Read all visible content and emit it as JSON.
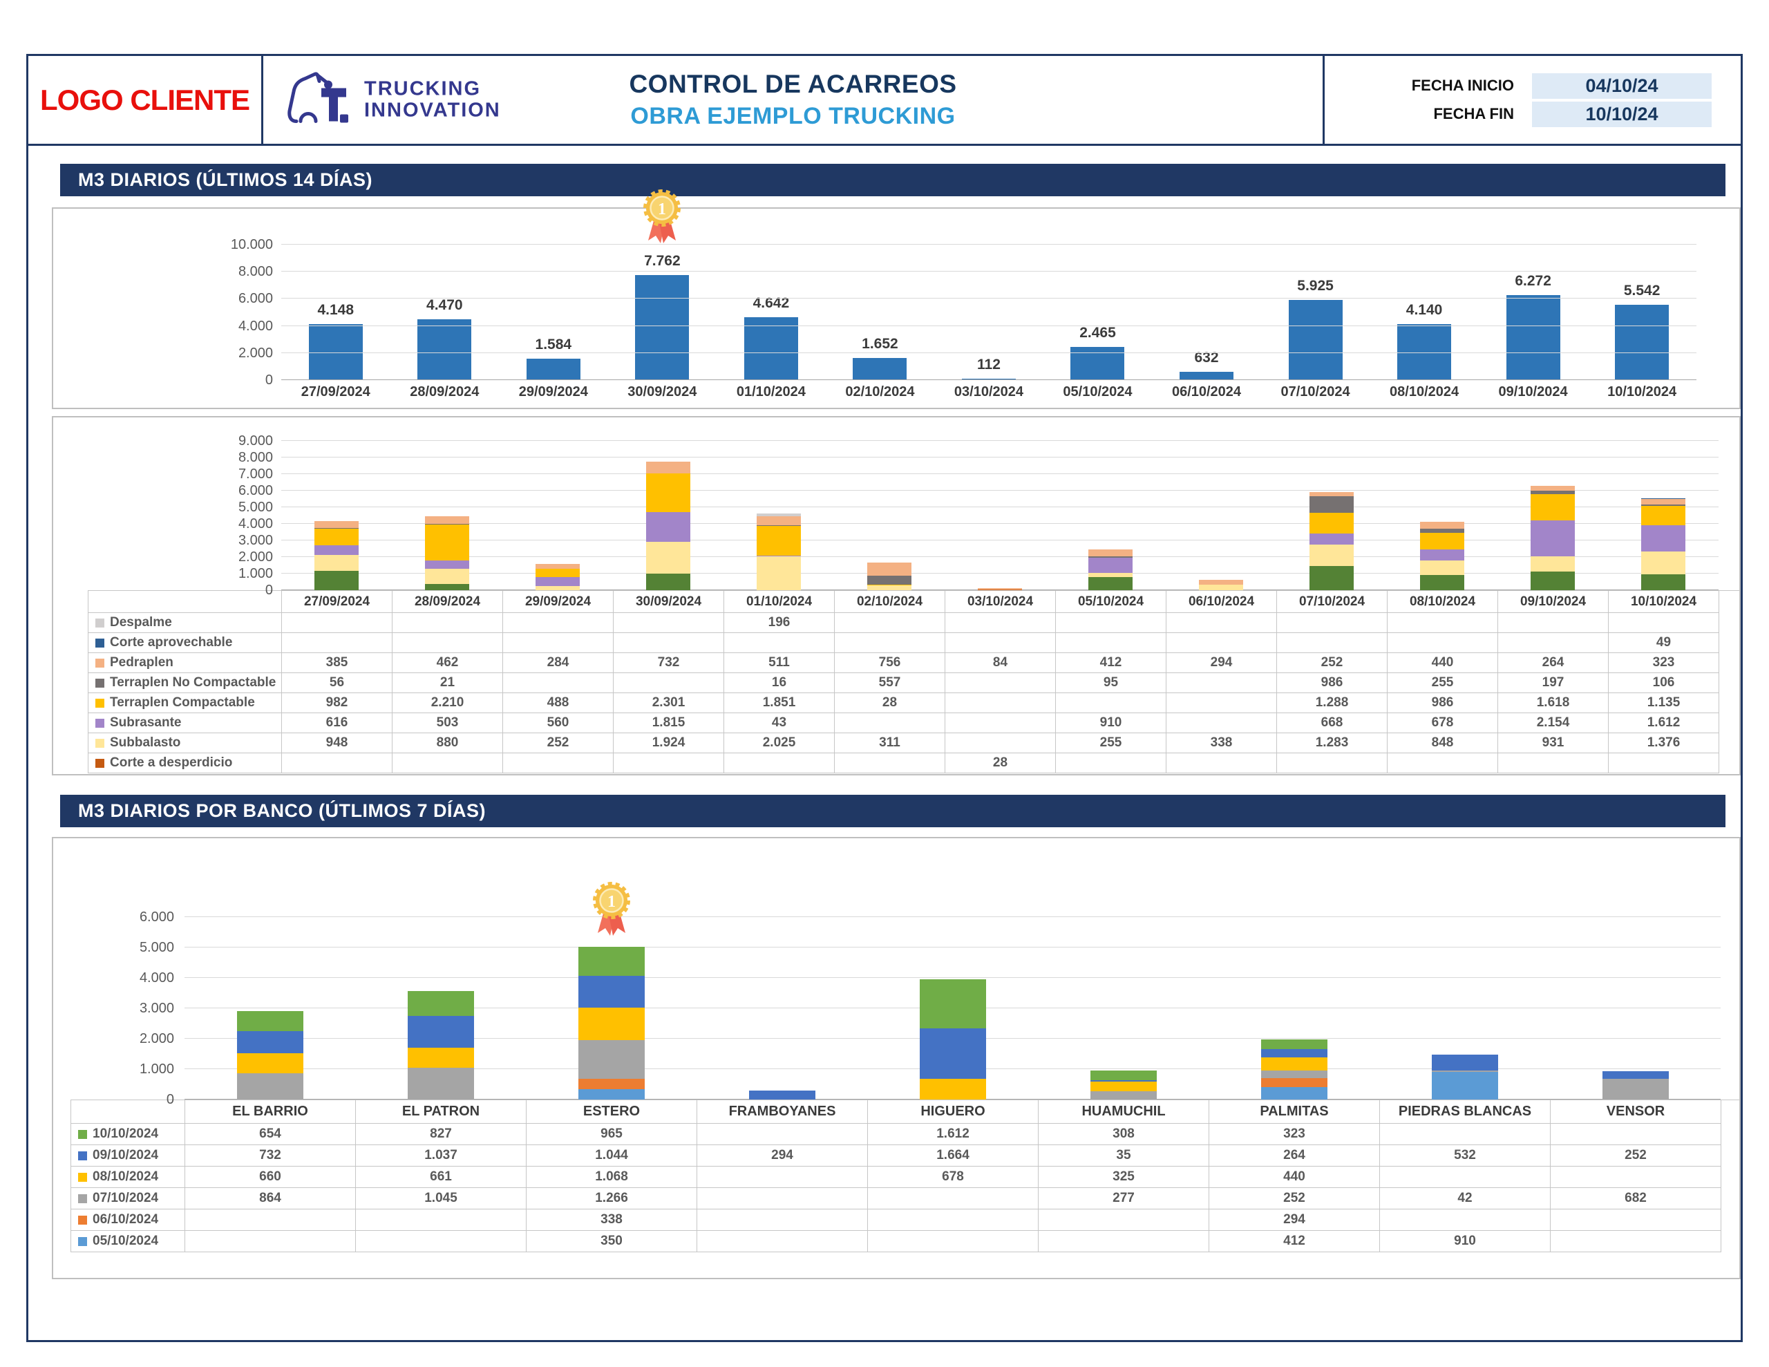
{
  "header": {
    "logo_client": "LOGO CLIENTE",
    "brand": {
      "line1": "TRUCKING",
      "line2": "INNOVATION"
    },
    "title_line1": "CONTROL DE ACARREOS",
    "title_line2": "OBRA EJEMPLO TRUCKING",
    "fecha_inicio_label": "FECHA INICIO",
    "fecha_fin_label": "FECHA FIN",
    "fecha_inicio_value": "04/10/24",
    "fecha_fin_value": "10/10/24",
    "colors": {
      "navy": "#203864",
      "title_dark": "#17375E",
      "title_light": "#2E9BD5",
      "logo_red": "#E8100C",
      "date_box_bg": "#DEEAF6"
    }
  },
  "sections": {
    "daily_title": "M3 DIARIOS (ÚLTIMOS 14 DÍAS)",
    "banco_title": "M3 DIARIOS POR BANCO (ÚTLIMOS 7 DÍAS)"
  },
  "chart_data": [
    {
      "type": "bar",
      "title": "M3 DIARIOS (ÚLTIMOS 14 DÍAS)",
      "categories": [
        "27/09/2024",
        "28/09/2024",
        "29/09/2024",
        "30/09/2024",
        "01/10/2024",
        "02/10/2024",
        "03/10/2024",
        "05/10/2024",
        "06/10/2024",
        "07/10/2024",
        "08/10/2024",
        "09/10/2024",
        "10/10/2024"
      ],
      "values": [
        4148,
        4470,
        1584,
        7762,
        4642,
        1652,
        112,
        2465,
        632,
        5925,
        4140,
        6272,
        5542
      ],
      "bar_color": "#2E75B6",
      "ylim": [
        0,
        10000
      ],
      "ytick_step": 2000,
      "grid": true,
      "legend_position": "none",
      "medal_category": "30/09/2024",
      "xlabel": "",
      "ylabel": ""
    },
    {
      "type": "bar",
      "subtype": "stacked-with-table",
      "categories": [
        "27/09/2024",
        "28/09/2024",
        "29/09/2024",
        "30/09/2024",
        "01/10/2024",
        "02/10/2024",
        "03/10/2024",
        "05/10/2024",
        "06/10/2024",
        "07/10/2024",
        "08/10/2024",
        "09/10/2024",
        "10/10/2024"
      ],
      "ylim": [
        0,
        9000
      ],
      "ytick_step": 1000,
      "grid": true,
      "legend_position": "table-left",
      "series": [
        {
          "label": "Despalme",
          "color": "#D0CECE",
          "in_table": true,
          "values": [
            null,
            null,
            null,
            null,
            196,
            null,
            null,
            null,
            null,
            null,
            null,
            null,
            null
          ]
        },
        {
          "label": "Corte aprovechable",
          "color": "#2E5F94",
          "in_table": true,
          "values": [
            null,
            null,
            null,
            null,
            null,
            null,
            null,
            null,
            null,
            null,
            null,
            null,
            49
          ]
        },
        {
          "label": "Pedraplen",
          "color": "#F4B183",
          "in_table": true,
          "values": [
            385,
            462,
            284,
            732,
            511,
            756,
            84,
            412,
            294,
            252,
            440,
            264,
            323
          ]
        },
        {
          "label": "Terraplen No Compactable",
          "color": "#767171",
          "in_table": true,
          "values": [
            56,
            21,
            null,
            null,
            16,
            557,
            null,
            95,
            null,
            986,
            255,
            197,
            106
          ]
        },
        {
          "label": "Terraplen Compactable",
          "color": "#FFC000",
          "in_table": true,
          "values": [
            982,
            2210,
            488,
            2301,
            1851,
            28,
            null,
            null,
            null,
            1288,
            986,
            1618,
            1135
          ]
        },
        {
          "label": "Subrasante",
          "color": "#A285C9",
          "in_table": true,
          "values": [
            616,
            503,
            560,
            1815,
            43,
            null,
            null,
            910,
            null,
            668,
            678,
            2154,
            1612
          ]
        },
        {
          "label": "Subbalasto",
          "color": "#FFE699",
          "in_table": true,
          "values": [
            948,
            880,
            252,
            1924,
            2025,
            311,
            null,
            255,
            338,
            1283,
            848,
            931,
            1376
          ]
        },
        {
          "label": "Corte a desperdicio",
          "color": "#C55A11",
          "in_table": true,
          "values": [
            null,
            null,
            null,
            null,
            null,
            null,
            28,
            null,
            null,
            null,
            null,
            null,
            null
          ]
        },
        {
          "label": "",
          "color": "#548235",
          "in_table": false,
          "values": [
            1161,
            394,
            null,
            990,
            null,
            null,
            null,
            793,
            null,
            1448,
            933,
            1108,
            941
          ]
        }
      ],
      "stack_order_bottom_to_top": [
        8,
        7,
        6,
        5,
        4,
        3,
        2,
        1,
        0
      ]
    },
    {
      "type": "bar",
      "subtype": "stacked-with-table",
      "title": "M3 DIARIOS POR BANCO (ÚTLIMOS 7 DÍAS)",
      "categories": [
        "EL BARRIO",
        "EL PATRON",
        "ESTERO",
        "FRAMBOYANES",
        "HIGUERO",
        "HUAMUCHIL",
        "PALMITAS",
        "PIEDRAS BLANCAS",
        "VENSOR"
      ],
      "ylim": [
        0,
        6000
      ],
      "ytick_step": 1000,
      "grid": true,
      "legend_position": "table-left",
      "medal_category": "ESTERO",
      "series": [
        {
          "label": "10/10/2024",
          "color": "#70AD47",
          "in_table": true,
          "values": [
            654,
            827,
            965,
            null,
            1612,
            308,
            323,
            null,
            null
          ]
        },
        {
          "label": "09/10/2024",
          "color": "#4472C4",
          "in_table": true,
          "values": [
            732,
            1037,
            1044,
            294,
            1664,
            35,
            264,
            532,
            252
          ]
        },
        {
          "label": "08/10/2024",
          "color": "#FFC000",
          "in_table": true,
          "values": [
            660,
            661,
            1068,
            null,
            678,
            325,
            440,
            null,
            null
          ]
        },
        {
          "label": "07/10/2024",
          "color": "#A5A5A5",
          "in_table": true,
          "values": [
            864,
            1045,
            1266,
            null,
            null,
            277,
            252,
            42,
            682
          ]
        },
        {
          "label": "06/10/2024",
          "color": "#ED7D31",
          "in_table": true,
          "values": [
            null,
            null,
            338,
            null,
            null,
            null,
            294,
            null,
            null
          ]
        },
        {
          "label": "05/10/2024",
          "color": "#5B9BD5",
          "in_table": true,
          "values": [
            null,
            null,
            350,
            null,
            null,
            null,
            412,
            910,
            null
          ]
        }
      ],
      "stack_order_bottom_to_top": [
        5,
        4,
        3,
        2,
        1,
        0
      ]
    }
  ]
}
